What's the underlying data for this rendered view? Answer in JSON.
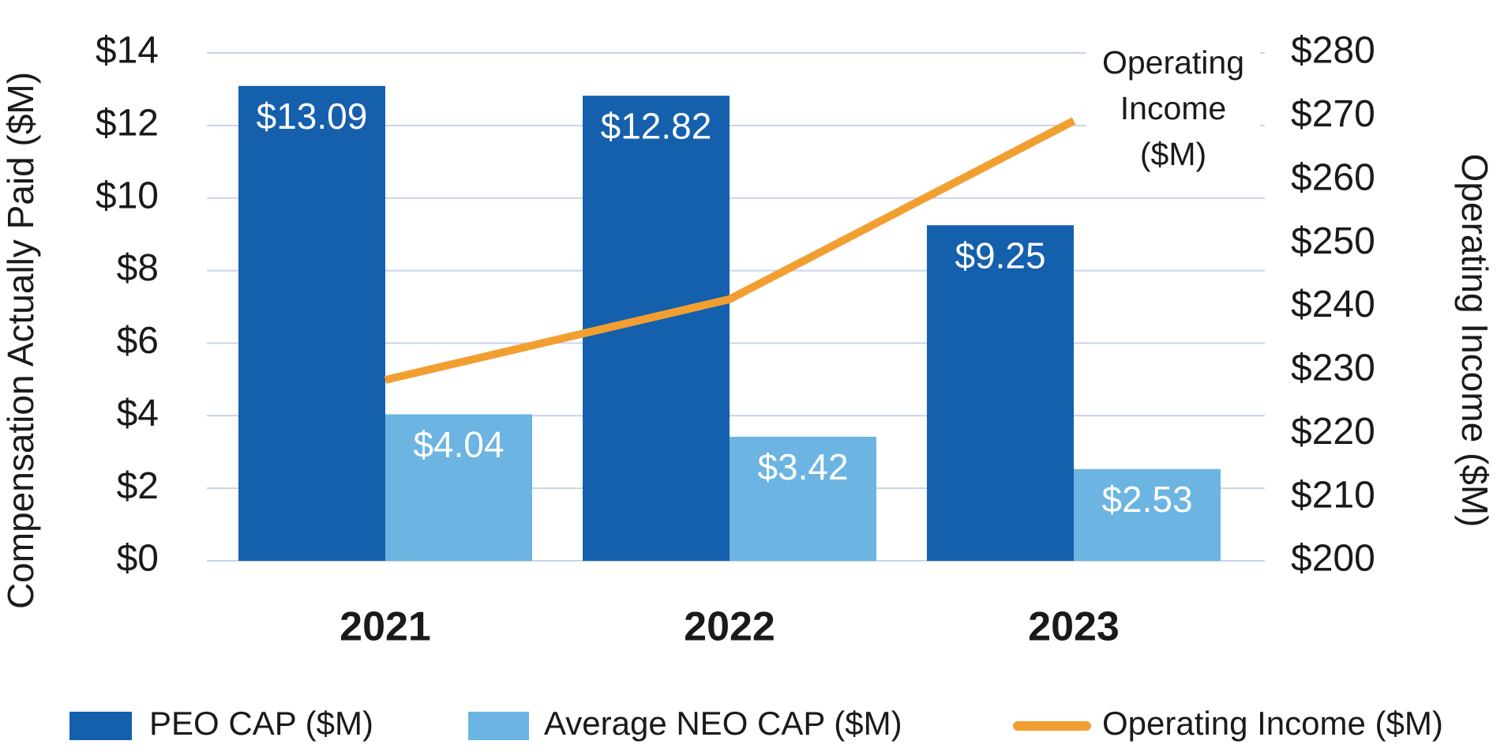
{
  "chart_data": {
    "type": "bar",
    "categories": [
      "2021",
      "2022",
      "2023"
    ],
    "series": [
      {
        "name": "PEO CAP ($M)",
        "color": "#1560ad",
        "values": [
          13.09,
          12.82,
          9.25
        ],
        "value_labels": [
          "$13.09",
          "$12.82",
          "$9.25"
        ]
      },
      {
        "name": "Average NEO CAP ($M)",
        "color": "#6cb4e2",
        "values": [
          4.04,
          3.42,
          2.53
        ],
        "value_labels": [
          "$4.04",
          "$3.42",
          "$2.53"
        ]
      },
      {
        "name": "Operating Income ($M)",
        "type": "line",
        "axis": "y2",
        "color": "#f29f32",
        "values": [
          228.5,
          241.2,
          269.3
        ]
      }
    ],
    "y_label": "Compensation Actually Paid ($M)",
    "y2_label": "Operating Income ($M)",
    "annotation": "Operating Income ($M)",
    "ylim": [
      0,
      14
    ],
    "yticks": [
      {
        "value": 0,
        "label": "$0"
      },
      {
        "value": 2,
        "label": "$2"
      },
      {
        "value": 4,
        "label": "$4"
      },
      {
        "value": 6,
        "label": "$6"
      },
      {
        "value": 8,
        "label": "$8"
      },
      {
        "value": 10,
        "label": "$10"
      },
      {
        "value": 12,
        "label": "$12"
      },
      {
        "value": 14,
        "label": "$14"
      }
    ],
    "y2lim": [
      200,
      280
    ],
    "y2ticks": [
      {
        "value": 200,
        "label": "$200"
      },
      {
        "value": 210,
        "label": "$210"
      },
      {
        "value": 220,
        "label": "$220"
      },
      {
        "value": 230,
        "label": "$230"
      },
      {
        "value": 240,
        "label": "$240"
      },
      {
        "value": 250,
        "label": "$250"
      },
      {
        "value": 260,
        "label": "$260"
      },
      {
        "value": 270,
        "label": "$270"
      },
      {
        "value": 280,
        "label": "$280"
      }
    ],
    "grid": true,
    "legend": "bottom"
  }
}
